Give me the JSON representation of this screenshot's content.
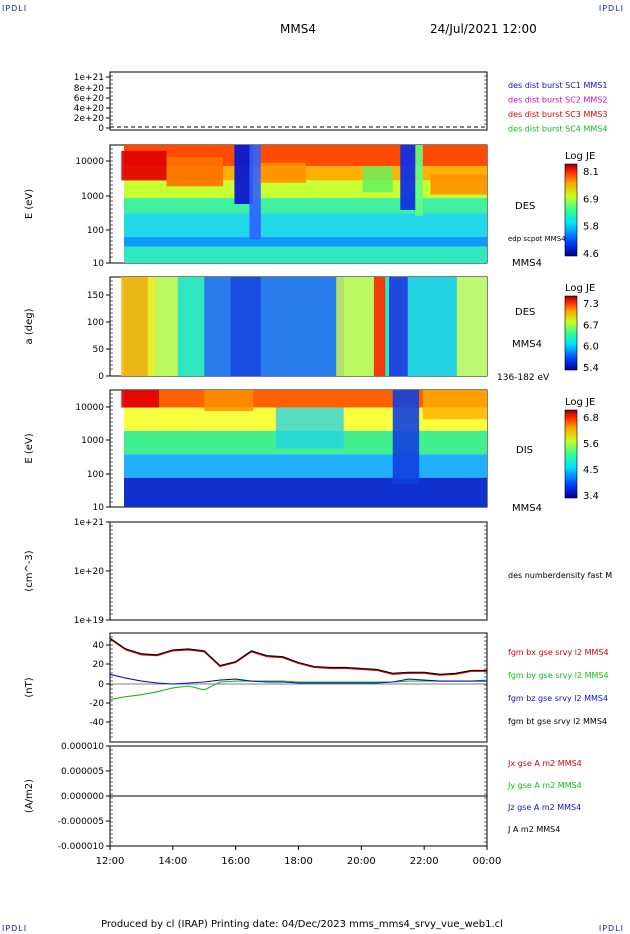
{
  "header": {
    "corner_left_top": "IPDLI",
    "corner_right_top": "IPDLI",
    "title": "MMS4",
    "datetime": "24/Jul/2021 12:00",
    "corner_left_bottom": "IPDLI",
    "corner_right_bottom": "IPDLI"
  },
  "footer": {
    "text": "Produced by cl (IRAP)   Printing date: 04/Dec/2023   mms_mms4_srvy_vue_web1.cl"
  },
  "colors": {
    "mms1": "#1010c8",
    "mms2": "#c010c8",
    "mms3": "#e00000",
    "mms4": "#10c010",
    "bx": "#e00000",
    "by": "#10c010",
    "bz": "#1010c8",
    "bt": "#000000"
  },
  "chart_data": [
    {
      "type": "line",
      "ylabel": "",
      "yticks": [
        "1e+21",
        "8e+20",
        "6e+20",
        "4e+20",
        "2e+20",
        "0"
      ],
      "legend": [
        {
          "label": "des dist burst SC1 MMS1",
          "color": "#1010c8"
        },
        {
          "label": "des dist burst SC2 MMS2",
          "color": "#c010c8"
        },
        {
          "label": "des dist burst SC3 MMS3",
          "color": "#e00000"
        },
        {
          "label": "des dist burst SC4 MMS4",
          "color": "#10c010"
        }
      ]
    },
    {
      "type": "heatmap",
      "ylabel": "E (eV)",
      "yticks": [
        "10000",
        "1000",
        "100",
        "10"
      ],
      "yscale": "log",
      "right_labels": [
        "DES",
        "edp scpot MMS4",
        "MMS4"
      ],
      "colorbar": {
        "title": "Log JE",
        "ticks": [
          "8.1",
          "6.9",
          "5.8",
          "4.6"
        ]
      }
    },
    {
      "type": "heatmap",
      "ylabel": "a (deg)",
      "yticks": [
        "150",
        "100",
        "50",
        "0"
      ],
      "right_labels": [
        "DES",
        "MMS4",
        "136-182 eV"
      ],
      "colorbar": {
        "title": "Log JE",
        "ticks": [
          "7.3",
          "6.7",
          "6.0",
          "5.4"
        ]
      }
    },
    {
      "type": "heatmap",
      "ylabel": "E (eV)",
      "yticks": [
        "10000",
        "1000",
        "100",
        "10"
      ],
      "yscale": "log",
      "right_labels": [
        "DIS",
        "MMS4"
      ],
      "colorbar": {
        "title": "Log JE",
        "ticks": [
          "6.8",
          "5.6",
          "4.5",
          "3.4"
        ]
      }
    },
    {
      "type": "line",
      "ylabel": "(cm^-3)",
      "yticks": [
        "1e+21",
        "1e+20",
        "1e+19"
      ],
      "yscale": "log",
      "legend": [
        {
          "label": "des numberdensity fast M",
          "color": "#000000"
        }
      ]
    },
    {
      "type": "line",
      "ylabel": "(nT)",
      "ylim": [
        -50,
        50
      ],
      "yticks": [
        "40",
        "20",
        "0",
        "-20",
        "-40"
      ],
      "x": [
        0,
        0.5,
        1,
        1.5,
        2,
        2.5,
        3,
        3.5,
        4,
        4.5,
        5,
        5.5,
        6,
        6.5,
        7,
        7.5,
        8,
        8.5,
        9,
        9.5,
        10,
        10.5,
        11,
        11.5,
        12
      ],
      "series": [
        {
          "name": "fgm bx gse srvy l2 MMS4",
          "color": "#e00000",
          "values": [
            46,
            35,
            30,
            29,
            34,
            35,
            33,
            18,
            22,
            33,
            28,
            27,
            21,
            17,
            16,
            16,
            15,
            14,
            10,
            11,
            11,
            9,
            10,
            13,
            13
          ]
        },
        {
          "name": "fgm by gse srvy l2 MMS4",
          "color": "#10c010",
          "values": [
            -16,
            -13,
            -11,
            -8,
            -4,
            -2,
            -6,
            2,
            3,
            3,
            3,
            3,
            2,
            2,
            2,
            2,
            2,
            2,
            2,
            3,
            3,
            3,
            3,
            3,
            4
          ]
        },
        {
          "name": "fgm bz gse srvy l2 MMS4",
          "color": "#1010c8",
          "values": [
            10,
            6,
            3,
            1,
            0,
            1,
            2,
            4,
            5,
            3,
            2,
            2,
            1,
            1,
            1,
            1,
            1,
            1,
            2,
            5,
            4,
            3,
            3,
            3,
            3
          ]
        },
        {
          "name": "fgm bt gse srvy l2 MMS4",
          "color": "#000000",
          "values": [
            47,
            36,
            31,
            30,
            35,
            36,
            34,
            19,
            23,
            34,
            29,
            28,
            22,
            18,
            17,
            17,
            16,
            15,
            11,
            12,
            12,
            10,
            11,
            14,
            14
          ]
        }
      ]
    },
    {
      "type": "line",
      "ylabel": "(A/m2)",
      "ylim": [
        -1e-05,
        1e-05
      ],
      "yticks": [
        "0.000010",
        "0.000005",
        "0.000000",
        "-0.000005",
        "-0.000010"
      ],
      "xticks": [
        "12:00",
        "14:00",
        "16:00",
        "18:00",
        "20:00",
        "22:00",
        "00:00"
      ],
      "legend": [
        {
          "label": "Jx gse A m2 MMS4",
          "color": "#e00000"
        },
        {
          "label": "Jy gse A m2 MMS4",
          "color": "#10c010"
        },
        {
          "label": "Jz gse A m2 MMS4",
          "color": "#1010c8"
        },
        {
          "label": "J A m2 MMS4",
          "color": "#000000"
        }
      ]
    }
  ]
}
